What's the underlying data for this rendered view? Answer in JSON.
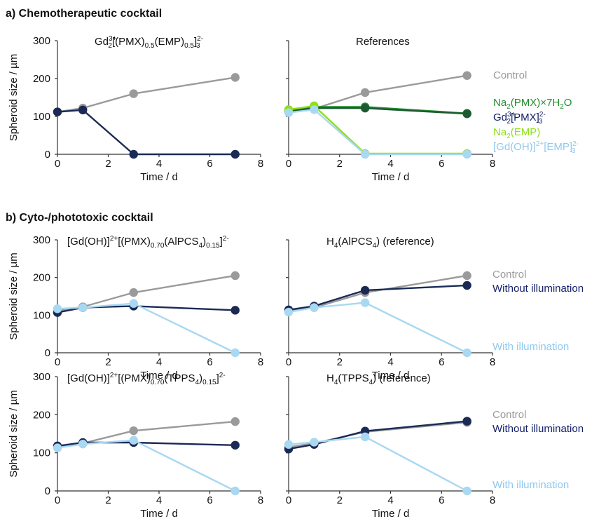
{
  "sections": {
    "a": "a) Chemotherapeutic cocktail",
    "b": "b) Cyto-/phototoxic cocktail"
  },
  "titles": {
    "a_left": {
      "base": "Gd",
      "sup1": "3+",
      "sub1": "2",
      "mid": "[(PMX)",
      "sub2": "0.5",
      "mid2": "(EMP)",
      "sub3": "0.5",
      "end": "]",
      "sup2": "2-",
      "sub4": "3"
    },
    "a_right": "References",
    "b1_left": {
      "pre": "[Gd(OH)]",
      "sup1": "2+",
      "mid": "[(PMX)",
      "sub1": "0.70",
      "mid2": "(AlPCS",
      "sub2": "4",
      "mid3": ")",
      "sub3": "0.15",
      "end": "]",
      "sup2": "2-"
    },
    "b1_right": {
      "pre": "H",
      "sub1": "4",
      "mid": "(AlPCS",
      "sub2": "4",
      "end": ") (reference)"
    },
    "b2_left": {
      "pre": "[Gd(OH)]",
      "sup1": "2+",
      "mid": "[(PMX)",
      "sub1": "0.70",
      "mid2": "(TPPS",
      "sub2": "4",
      "mid3": ")",
      "sub3": "0.15",
      "end": "]",
      "sup2": "2-"
    },
    "b2_right": {
      "pre": "H",
      "sub1": "4",
      "mid": "(TPPS",
      "sub2": "4",
      "end": ") (reference)"
    }
  },
  "axes": {
    "ylabel": "Spheroid size / µm",
    "xlabel": "Time / d",
    "xticks": [
      "0",
      "2",
      "4",
      "6",
      "8"
    ],
    "yticks": [
      "0",
      "100",
      "200",
      "300"
    ]
  },
  "legends": {
    "a_right": [
      {
        "key": "control",
        "text": "Control",
        "color": "#9a9a9a"
      },
      {
        "key": "na2pmx",
        "text": "Na",
        "sub": "2",
        "rest": "(PMX)×7H",
        "sub2": "2",
        "rest2": "O",
        "color": "#1e8f2a"
      },
      {
        "key": "gdpmx",
        "text": "Gd",
        "sup": "3+",
        "sub": "2",
        "rest": "[PMX]",
        "sup2": "2-",
        "sub2": "3",
        "color": "#14206a"
      },
      {
        "key": "na2emp",
        "text": "Na",
        "sub": "2",
        "rest": "(EMP)",
        "color": "#8ee01a"
      },
      {
        "key": "gdohemp",
        "text": "[Gd(OH)]",
        "sup": "2+",
        "rest": "[EMP]",
        "sup2": "2-",
        "sub2": "3",
        "color": "#8ec9f0"
      }
    ],
    "b": [
      {
        "key": "control",
        "text": "Control",
        "color": "#9a9a9a"
      },
      {
        "key": "without",
        "text": "Without illumination",
        "color": "#14206a"
      },
      {
        "key": "with",
        "text": "With illumination",
        "color": "#8ec9f0"
      }
    ]
  },
  "colors": {
    "control": "#9a9a9a",
    "navy": "#1a2a55",
    "light_blue": "#a9d8f2",
    "green": "#1e8f2a",
    "dark_green": "#1d5a32",
    "lime": "#8ee01a"
  },
  "chart_data": [
    {
      "type": "line",
      "panel": "a_left",
      "xlim": [
        0,
        8
      ],
      "ylim": [
        0,
        300
      ],
      "series": [
        {
          "name": "Control",
          "color": "#9a9a9a",
          "x": [
            0,
            1,
            3,
            7
          ],
          "y": [
            112,
            122,
            160,
            203
          ]
        },
        {
          "color": "#1a2a55",
          "x": [
            0,
            1,
            3,
            7
          ],
          "y": [
            112,
            117,
            0,
            0
          ]
        }
      ]
    },
    {
      "type": "line",
      "panel": "a_right",
      "xlim": [
        0,
        8
      ],
      "ylim": [
        0,
        300
      ],
      "series": [
        {
          "name": "Control",
          "color": "#9a9a9a",
          "x": [
            0,
            1,
            3,
            7
          ],
          "y": [
            112,
            120,
            163,
            208
          ]
        },
        {
          "name": "Na2(PMX)×7H2O",
          "color": "#1e8f2a",
          "x": [
            0,
            1,
            3,
            7
          ],
          "y": [
            115,
            125,
            125,
            108
          ]
        },
        {
          "name": "Gd3+2[PMX]2-3",
          "color": "#1d5a32",
          "x": [
            0,
            1,
            3,
            7
          ],
          "y": [
            113,
            122,
            122,
            107
          ]
        },
        {
          "name": "Na2(EMP)",
          "color": "#8ee01a",
          "x": [
            0,
            1,
            3,
            7
          ],
          "y": [
            118,
            128,
            2,
            2
          ]
        },
        {
          "name": "[Gd(OH)]2+[EMP]2-3",
          "color": "#a9d8f2",
          "x": [
            0,
            1,
            3,
            7
          ],
          "y": [
            110,
            118,
            0,
            0
          ]
        }
      ]
    },
    {
      "type": "line",
      "panel": "b1_left",
      "xlim": [
        0,
        8
      ],
      "ylim": [
        0,
        300
      ],
      "series": [
        {
          "name": "Control",
          "color": "#9a9a9a",
          "x": [
            0,
            1,
            3,
            7
          ],
          "y": [
            112,
            122,
            160,
            205
          ]
        },
        {
          "name": "Without illumination",
          "color": "#1a2a55",
          "x": [
            0,
            1,
            3,
            7
          ],
          "y": [
            107,
            120,
            124,
            113
          ]
        },
        {
          "name": "With illumination",
          "color": "#a9d8f2",
          "x": [
            0,
            1,
            3,
            7
          ],
          "y": [
            117,
            120,
            131,
            0
          ]
        }
      ]
    },
    {
      "type": "line",
      "panel": "b1_right",
      "xlim": [
        0,
        8
      ],
      "ylim": [
        0,
        300
      ],
      "series": [
        {
          "name": "Control",
          "color": "#9a9a9a",
          "x": [
            0,
            1,
            3,
            7
          ],
          "y": [
            112,
            120,
            160,
            205
          ]
        },
        {
          "name": "Without illumination",
          "color": "#1a2a55",
          "x": [
            0,
            1,
            3,
            7
          ],
          "y": [
            114,
            124,
            166,
            179
          ]
        },
        {
          "name": "With illumination",
          "color": "#a9d8f2",
          "x": [
            0,
            1,
            3,
            7
          ],
          "y": [
            108,
            120,
            133,
            0
          ]
        }
      ]
    },
    {
      "type": "line",
      "panel": "b2_left",
      "xlim": [
        0,
        8
      ],
      "ylim": [
        0,
        300
      ],
      "series": [
        {
          "name": "Control",
          "color": "#9a9a9a",
          "x": [
            0,
            1,
            3,
            7
          ],
          "y": [
            118,
            125,
            158,
            182
          ]
        },
        {
          "name": "Without illumination",
          "color": "#1a2a55",
          "x": [
            0,
            1,
            3,
            7
          ],
          "y": [
            118,
            127,
            127,
            120
          ]
        },
        {
          "name": "With illumination",
          "color": "#a9d8f2",
          "x": [
            0,
            1,
            3,
            7
          ],
          "y": [
            113,
            123,
            133,
            0
          ]
        }
      ]
    },
    {
      "type": "line",
      "panel": "b2_right",
      "xlim": [
        0,
        8
      ],
      "ylim": [
        0,
        300
      ],
      "series": [
        {
          "name": "Control",
          "color": "#9a9a9a",
          "x": [
            0,
            1,
            3,
            7
          ],
          "y": [
            115,
            125,
            155,
            180
          ]
        },
        {
          "name": "Without illumination",
          "color": "#1a2a55",
          "x": [
            0,
            1,
            3,
            7
          ],
          "y": [
            110,
            122,
            157,
            183
          ]
        },
        {
          "name": "With illumination",
          "color": "#a9d8f2",
          "x": [
            0,
            1,
            3,
            7
          ],
          "y": [
            122,
            128,
            142,
            0
          ]
        }
      ]
    }
  ]
}
